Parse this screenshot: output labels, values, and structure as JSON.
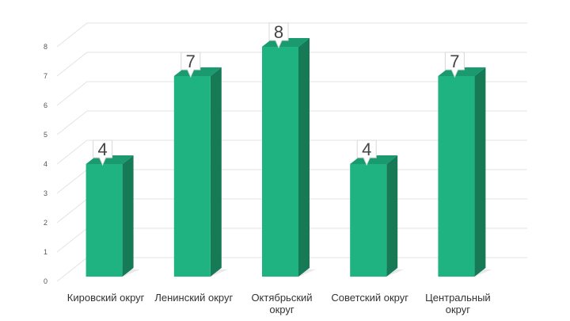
{
  "chart_data": {
    "type": "bar",
    "title": "",
    "xlabel": "",
    "ylabel": "",
    "categories": [
      "Кировский округ",
      "Ленинский округ",
      "Октябрьский округ",
      "Советский округ",
      "Центральный округ"
    ],
    "category_lines": [
      [
        "Кировский округ"
      ],
      [
        "Ленинский округ"
      ],
      [
        "Октябрьский",
        "округ"
      ],
      [
        "Советский округ"
      ],
      [
        "Центральный",
        "округ"
      ]
    ],
    "values": [
      4,
      7,
      8,
      4,
      7
    ],
    "data_labels": [
      "4",
      "7",
      "8",
      "4",
      "7"
    ],
    "ylim": [
      0,
      8
    ],
    "yticks": [
      "0",
      "1",
      "2",
      "3",
      "4",
      "5",
      "6",
      "7",
      "8"
    ],
    "grid": true,
    "legend": "none",
    "style": "3d-column",
    "colors": {
      "bar_front": "#1fb381",
      "bar_side": "#167a57",
      "bar_top": "#1a9a6e",
      "gridline": "#e3e3e3"
    }
  }
}
